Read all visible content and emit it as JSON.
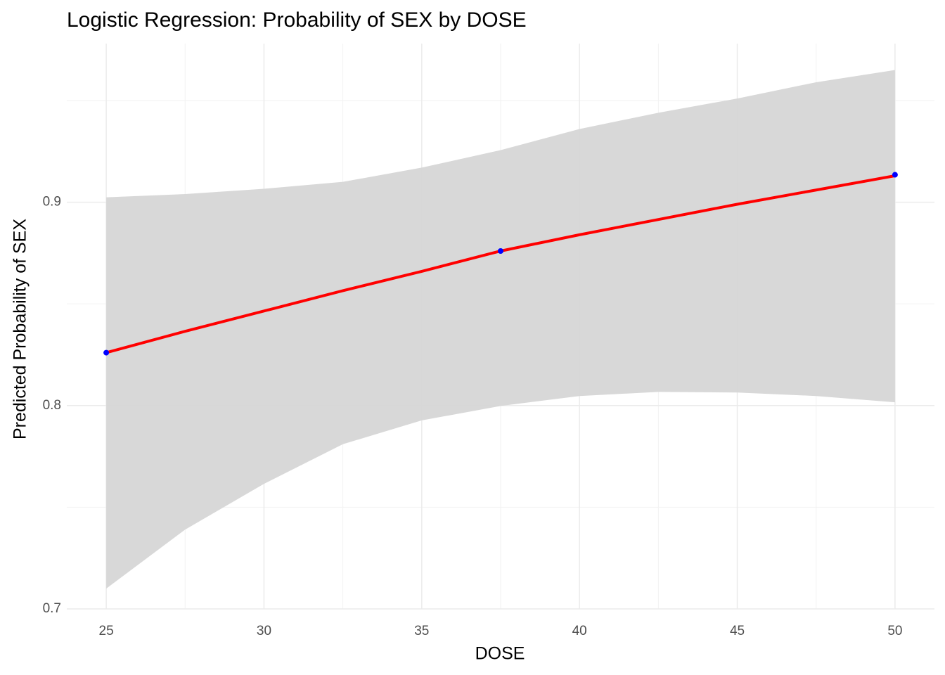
{
  "chart_data": {
    "type": "line",
    "title": "Logistic Regression: Probability of SEX by DOSE",
    "x_label": "DOSE",
    "y_label": "Predicted Probability of SEX",
    "x": [
      25,
      27.5,
      30,
      32.5,
      35,
      37.5,
      40,
      42.5,
      45,
      47.5,
      50
    ],
    "fit": {
      "color": "#ff0000",
      "values": [
        0.826,
        0.8365,
        0.8465,
        0.8565,
        0.866,
        0.876,
        0.884,
        0.8915,
        0.899,
        0.906,
        0.913
      ]
    },
    "band": {
      "color": "#d6d6d6",
      "upper": [
        0.9024,
        0.904,
        0.9066,
        0.91,
        0.917,
        0.9256,
        0.936,
        0.944,
        0.951,
        0.959,
        0.965
      ],
      "lower": [
        0.71,
        0.739,
        0.7615,
        0.781,
        0.7927,
        0.7998,
        0.8047,
        0.8067,
        0.8064,
        0.8047,
        0.8016
      ]
    },
    "points": {
      "color": "#0000ff",
      "x": [
        25,
        37.5,
        50
      ],
      "values": [
        0.826,
        0.876,
        0.9135
      ]
    },
    "xlim": [
      23.75,
      51.25
    ],
    "ylim": [
      0.7,
      0.978
    ],
    "xticks": [
      25,
      30,
      35,
      40,
      45,
      50
    ],
    "yticks": [
      0.7,
      0.8,
      0.9
    ],
    "x_minor_ticks": [
      27.5,
      32.5,
      37.5,
      42.5,
      47.5
    ],
    "y_minor_ticks": [
      0.75,
      0.85,
      0.95
    ],
    "grid": true
  }
}
